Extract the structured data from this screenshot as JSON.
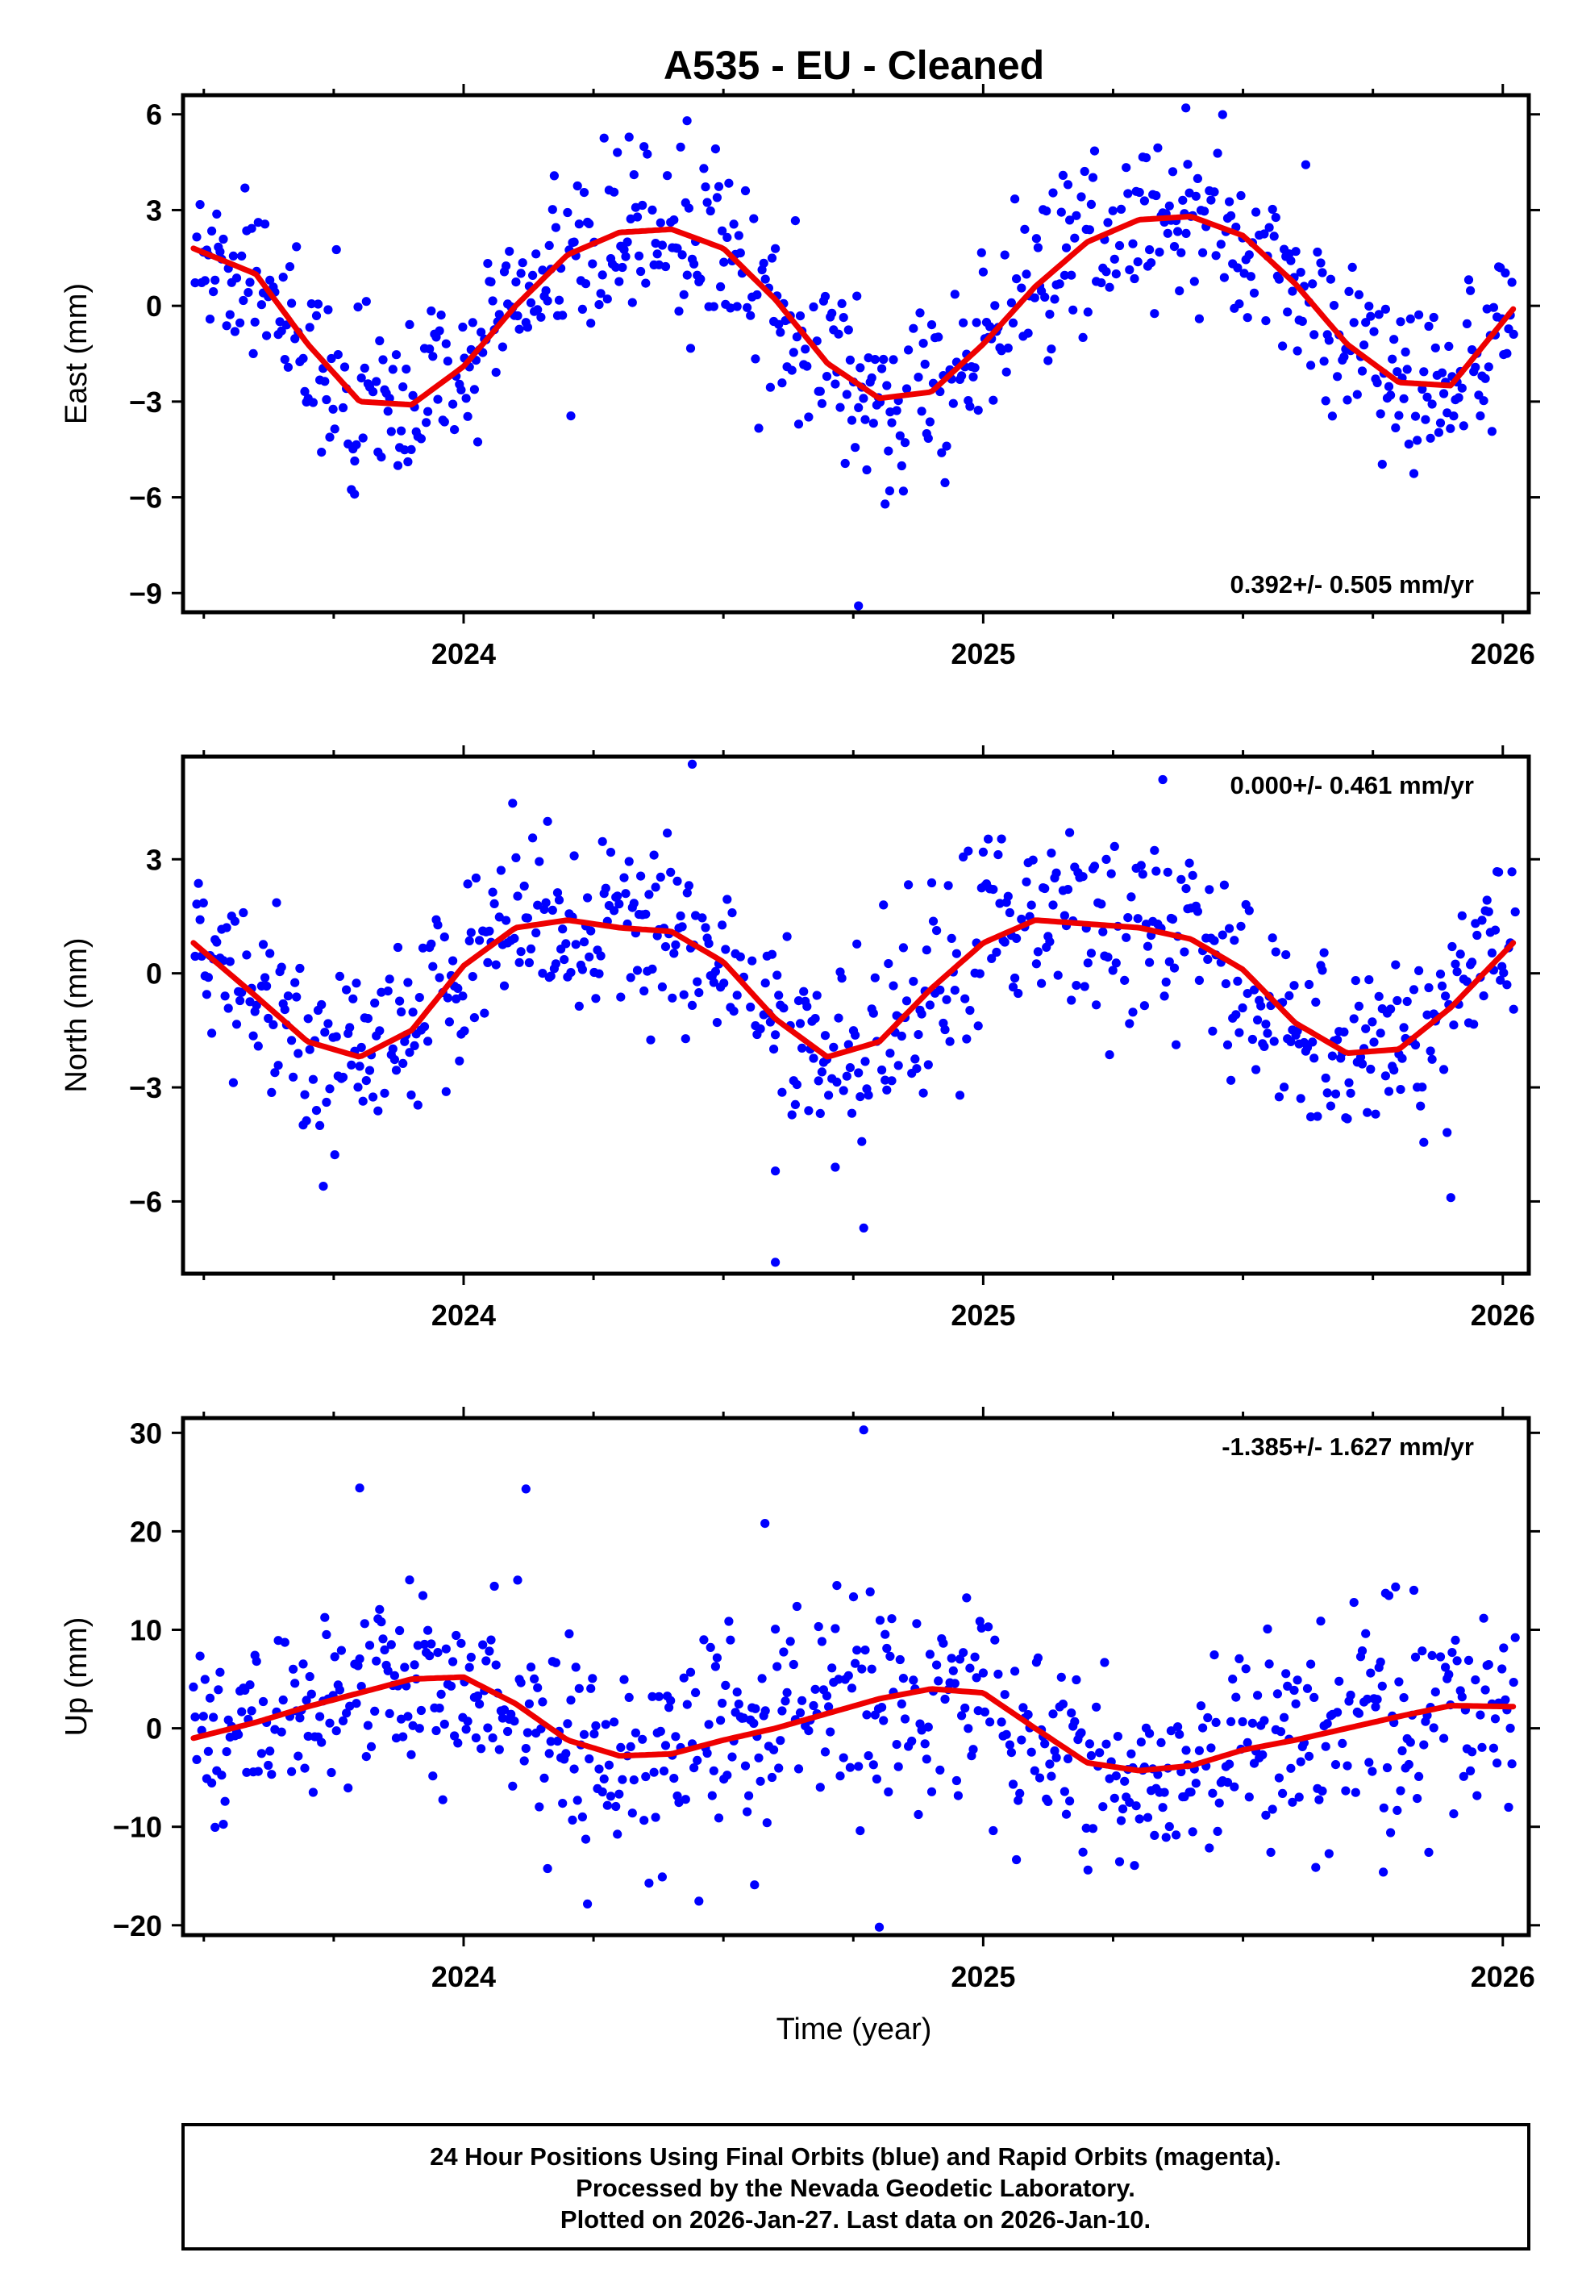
{
  "page": {
    "title": "A535  - EU - Cleaned",
    "xlabel": "Time (year)",
    "footer": [
      "24 Hour Positions Using Final Orbits (blue) and Rapid Orbits (magenta).",
      "Processed by the Nevada Geodetic Laboratory.",
      "Plotted on 2026-Jan-27. Last data on 2026-Jan-10."
    ]
  },
  "colors": {
    "points": "#0000ff",
    "fit": "#ee0000",
    "frame": "#000000"
  },
  "chart_data": [
    {
      "type": "scatter",
      "panel": "east",
      "title": "A535  - EU - Cleaned",
      "ylabel": "East (mm)",
      "xlabel": "",
      "rate_label": "0.392+/- 0.505 mm/yr",
      "rate_position": "bottom-right",
      "xlim": [
        2023.46,
        2026.05
      ],
      "ylim": [
        -9.6,
        6.6
      ],
      "yticks": [
        -9,
        -6,
        -3,
        0,
        3,
        6
      ],
      "ytick_labels": [
        "−9",
        "−6",
        "−3",
        "0",
        "3",
        "6"
      ],
      "xticks": [
        2024,
        2025,
        2026
      ],
      "xtick_labels": [
        "2024",
        "2025",
        "2026"
      ],
      "grid": false,
      "series": [
        {
          "name": "daily positions",
          "style": "points",
          "scatter_sd": 1.3,
          "outliers": [
            [
              2024.76,
              -9.4
            ],
            [
              2024.43,
              5.8
            ],
            [
              2025.39,
              6.2
            ],
            [
              2023.79,
              -5.9
            ],
            [
              2024.82,
              -5.8
            ]
          ]
        },
        {
          "name": "model fit",
          "style": "line",
          "x": [
            2023.48,
            2023.6,
            2023.7,
            2023.8,
            2023.9,
            2024.0,
            2024.1,
            2024.2,
            2024.3,
            2024.4,
            2024.5,
            2024.6,
            2024.7,
            2024.8,
            2024.9,
            2025.0,
            2025.1,
            2025.2,
            2025.3,
            2025.4,
            2025.5,
            2025.6,
            2025.7,
            2025.8,
            2025.9,
            2026.02
          ],
          "y": [
            1.8,
            1.0,
            -1.2,
            -3.0,
            -3.1,
            -1.9,
            0.0,
            1.6,
            2.3,
            2.4,
            1.8,
            0.2,
            -1.8,
            -2.9,
            -2.7,
            -1.2,
            0.6,
            2.0,
            2.7,
            2.8,
            2.2,
            0.7,
            -1.2,
            -2.4,
            -2.5,
            -0.1
          ]
        }
      ]
    },
    {
      "type": "scatter",
      "panel": "north",
      "ylabel": "North (mm)",
      "xlabel": "",
      "rate_label": "0.000+/- 0.461 mm/yr",
      "rate_position": "top-right",
      "xlim": [
        2023.46,
        2026.05
      ],
      "ylim": [
        -7.9,
        5.7
      ],
      "yticks": [
        -6,
        -3,
        0,
        3
      ],
      "ytick_labels": [
        "−6",
        "−3",
        "0",
        "3"
      ],
      "xticks": [
        2024,
        2025,
        2026
      ],
      "xtick_labels": [
        "2024",
        "2025",
        "2026"
      ],
      "grid": false,
      "series": [
        {
          "name": "daily positions",
          "style": "points",
          "scatter_sd": 1.2,
          "outliers": [
            [
              2024.6,
              -7.6
            ],
            [
              2024.44,
              5.5
            ],
            [
              2024.77,
              -6.7
            ],
            [
              2025.9,
              -5.9
            ],
            [
              2023.73,
              -5.6
            ],
            [
              2024.6,
              -5.2
            ]
          ]
        },
        {
          "name": "model fit",
          "style": "line",
          "x": [
            2023.48,
            2023.6,
            2023.7,
            2023.8,
            2023.9,
            2024.0,
            2024.1,
            2024.2,
            2024.3,
            2024.4,
            2024.5,
            2024.6,
            2024.7,
            2024.8,
            2024.9,
            2025.0,
            2025.1,
            2025.2,
            2025.3,
            2025.4,
            2025.5,
            2025.6,
            2025.7,
            2025.8,
            2025.9,
            2026.02
          ],
          "y": [
            0.8,
            -0.6,
            -1.8,
            -2.2,
            -1.5,
            0.2,
            1.2,
            1.4,
            1.2,
            1.1,
            0.3,
            -1.2,
            -2.2,
            -1.8,
            -0.4,
            0.8,
            1.4,
            1.3,
            1.2,
            0.9,
            0.1,
            -1.3,
            -2.1,
            -2.0,
            -0.9,
            0.8
          ]
        }
      ]
    },
    {
      "type": "scatter",
      "panel": "up",
      "ylabel": "Up (mm)",
      "xlabel": "Time (year)",
      "rate_label": "-1.385+/- 1.627 mm/yr",
      "rate_position": "top-right",
      "xlim": [
        2023.46,
        2026.05
      ],
      "ylim": [
        -21,
        31.5
      ],
      "yticks": [
        -20,
        -10,
        0,
        10,
        20,
        30
      ],
      "ytick_labels": [
        "−20",
        "−10",
        "0",
        "10",
        "20",
        "30"
      ],
      "xticks": [
        2024,
        2025,
        2026
      ],
      "xtick_labels": [
        "2024",
        "2025",
        "2026"
      ],
      "grid": false,
      "series": [
        {
          "name": "daily positions",
          "style": "points",
          "scatter_sd": 5.3,
          "outliers": [
            [
              2024.77,
              30.3
            ],
            [
              2024.8,
              -20.2
            ],
            [
              2024.12,
              24.3
            ],
            [
              2023.8,
              24.4
            ],
            [
              2024.58,
              20.8
            ],
            [
              2024.56,
              -15.9
            ],
            [
              2025.77,
              -14.6
            ]
          ]
        },
        {
          "name": "model fit",
          "style": "line",
          "x": [
            2023.48,
            2023.6,
            2023.7,
            2023.8,
            2023.9,
            2024.0,
            2024.1,
            2024.2,
            2024.3,
            2024.4,
            2024.5,
            2024.6,
            2024.7,
            2024.8,
            2024.9,
            2025.0,
            2025.1,
            2025.2,
            2025.3,
            2025.4,
            2025.5,
            2025.6,
            2025.7,
            2025.8,
            2025.9,
            2026.02
          ],
          "y": [
            -1.0,
            0.6,
            2.2,
            3.6,
            5.0,
            5.2,
            2.5,
            -1.2,
            -2.8,
            -2.6,
            -1.2,
            0.0,
            1.5,
            3.0,
            4.0,
            3.6,
            0.0,
            -3.5,
            -4.3,
            -3.8,
            -2.2,
            -1.2,
            0.0,
            1.2,
            2.3,
            2.2
          ]
        }
      ]
    }
  ]
}
